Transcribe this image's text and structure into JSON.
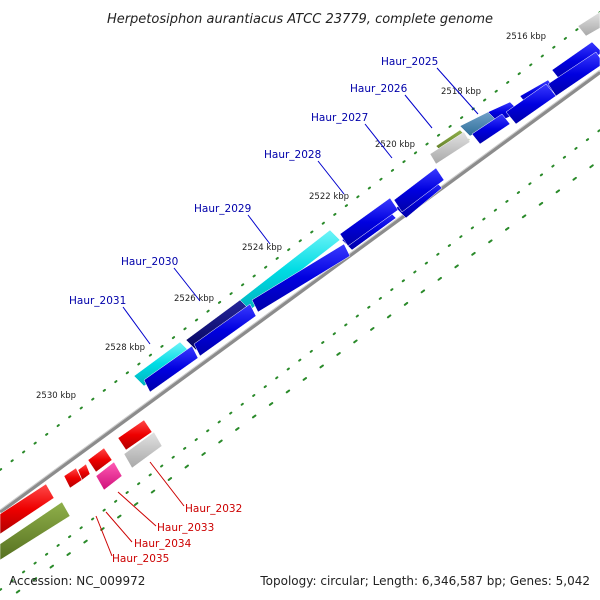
{
  "title": "Herpetosiphon aurantiacus ATCC 23779, complete genome",
  "footer": {
    "accession": "Accession: NC_009972",
    "summary": "Topology: circular; Length: 6,346,587 bp; Genes: 5,042"
  },
  "ticks": [
    "2516 kbp",
    "2518 kbp",
    "2520 kbp",
    "2522 kbp",
    "2524 kbp",
    "2526 kbp",
    "2528 kbp",
    "2530 kbp"
  ],
  "genes": [
    {
      "name": "Haur_2025",
      "color": "#0000aa"
    },
    {
      "name": "Haur_2026",
      "color": "#0000aa"
    },
    {
      "name": "Haur_2027",
      "color": "#0000aa"
    },
    {
      "name": "Haur_2028",
      "color": "#0000aa"
    },
    {
      "name": "Haur_2029",
      "color": "#0000aa"
    },
    {
      "name": "Haur_2030",
      "color": "#0000aa"
    },
    {
      "name": "Haur_2031",
      "color": "#0000aa"
    },
    {
      "name": "Haur_2032",
      "color": "#cc0000"
    },
    {
      "name": "Haur_2033",
      "color": "#cc0000"
    },
    {
      "name": "Haur_2034",
      "color": "#cc0000"
    },
    {
      "name": "Haur_2035",
      "color": "#cc0000"
    }
  ],
  "colors": {
    "forward_cds": "#0000dd",
    "reverse_cds": "#ee0000",
    "backbone": "#8c8c8c",
    "tick_marks": "#2a8a2a",
    "cyan_feature": "#00d8e0",
    "navy_feature": "#0a0a80",
    "olive_feature": "#6b8e23",
    "grey_feature": "#c0c0c0",
    "pink_feature": "#ff1493"
  }
}
